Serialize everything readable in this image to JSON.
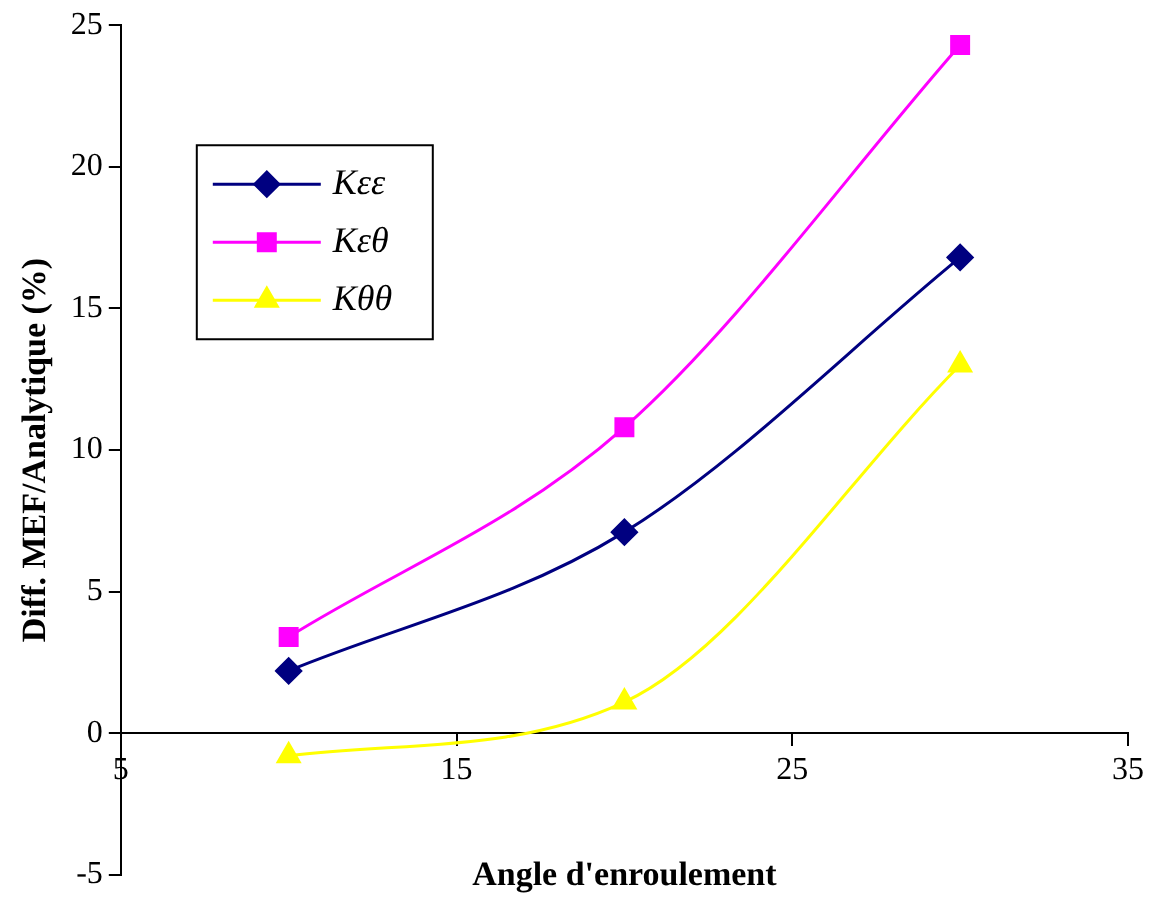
{
  "chart_data": {
    "type": "line",
    "xlabel": "Angle d'enroulement",
    "ylabel": "Diff. MEF/Analytique (%)",
    "x": [
      10,
      20,
      30
    ],
    "series": [
      {
        "name": "Kεε",
        "color": "#000080",
        "values": [
          2.2,
          7.1,
          16.8
        ],
        "marker": "diamond"
      },
      {
        "name": "Kεθ",
        "color": "#ff00ff",
        "values": [
          3.4,
          10.8,
          24.3
        ],
        "marker": "square"
      },
      {
        "name": "Kθθ",
        "color": "#ffff00",
        "values": [
          -0.8,
          1.1,
          13.0
        ],
        "marker": "triangle"
      }
    ],
    "xlim": [
      5,
      35
    ],
    "xticks": [
      5,
      15,
      25,
      35
    ],
    "ylim": [
      -5,
      25
    ],
    "yticks": [
      -5,
      0,
      5,
      10,
      15,
      20,
      25
    ],
    "grid": false,
    "legend": "top left"
  }
}
